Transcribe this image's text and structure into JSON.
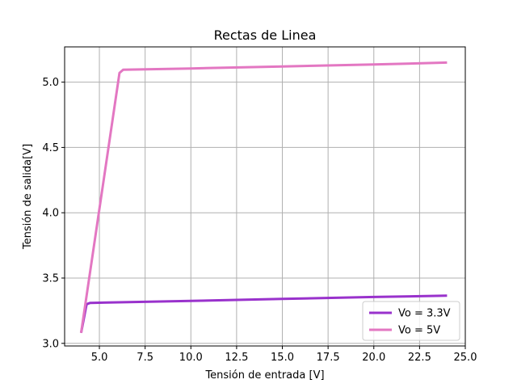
{
  "chart_data": {
    "type": "line",
    "title": "Rectas de Linea",
    "xlabel": "Tensión de entrada [V]",
    "ylabel": "Tensión de salida[V]",
    "xlim": [
      3.1,
      25.0
    ],
    "ylim": [
      2.98,
      5.27
    ],
    "xticks": [
      5.0,
      7.5,
      10.0,
      12.5,
      15.0,
      17.5,
      20.0,
      22.5,
      25.0
    ],
    "xtick_labels": [
      "5.0",
      "7.5",
      "10.0",
      "12.5",
      "15.0",
      "17.5",
      "20.0",
      "22.5",
      "25.0"
    ],
    "yticks": [
      3.0,
      3.5,
      4.0,
      4.5,
      5.0
    ],
    "ytick_labels": [
      "3.0",
      "3.5",
      "4.0",
      "4.5",
      "5.0"
    ],
    "grid": true,
    "legend_position": "lower-right",
    "series": [
      {
        "name": "Vo = 3.3V",
        "color": "#9932CC",
        "x": [
          4.0,
          4.3,
          4.5,
          10.0,
          15.0,
          20.0,
          24.0
        ],
        "y": [
          3.08,
          3.3,
          3.31,
          3.325,
          3.34,
          3.355,
          3.365
        ]
      },
      {
        "name": "Vo = 5V",
        "color": "#E377C2",
        "x": [
          4.0,
          6.1,
          6.3,
          10.0,
          15.0,
          20.0,
          24.0
        ],
        "y": [
          3.08,
          5.07,
          5.095,
          5.105,
          5.12,
          5.135,
          5.15
        ]
      }
    ]
  }
}
